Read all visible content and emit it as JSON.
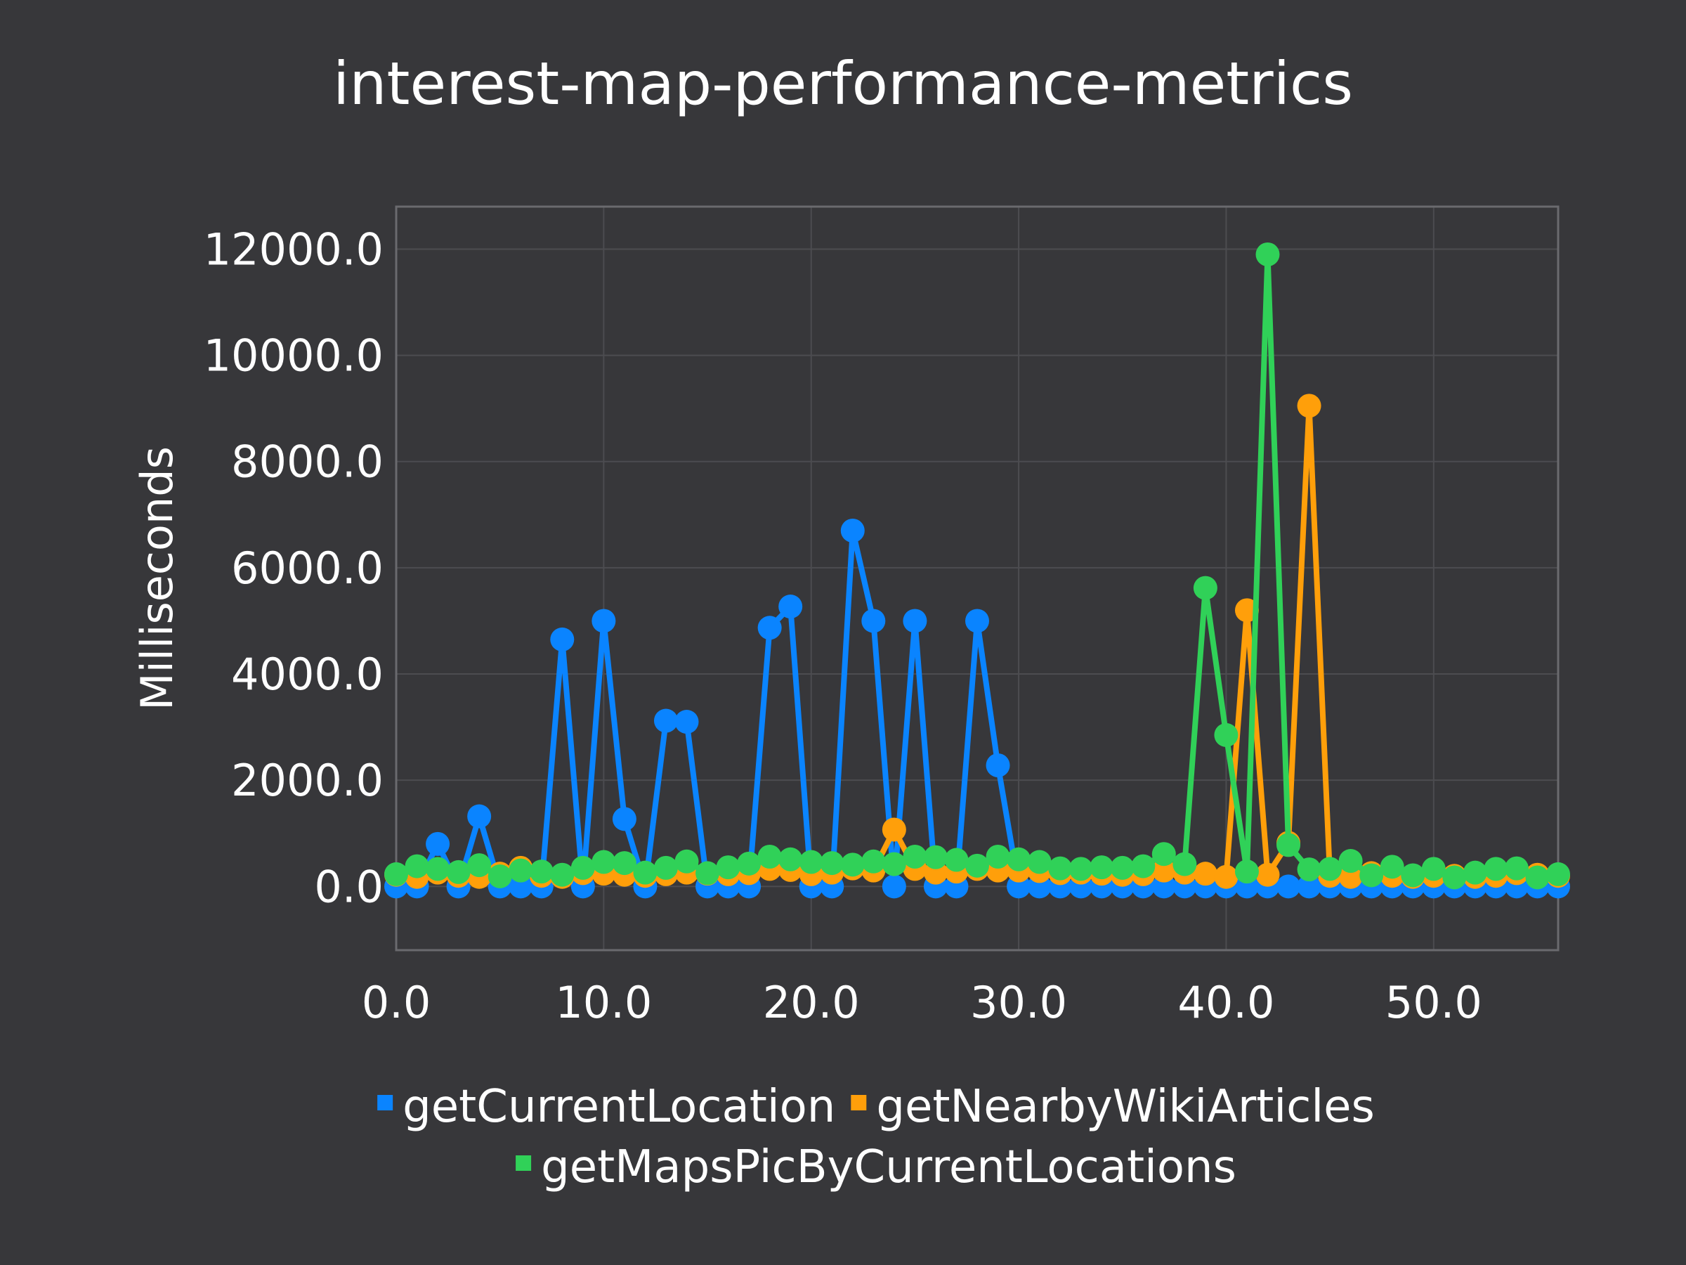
{
  "chart_data": {
    "type": "line",
    "title": "interest-map-performance-metrics",
    "xlabel": "",
    "ylabel": "Milliseconds",
    "xlim": [
      0,
      56
    ],
    "ylim": [
      -1200,
      12800
    ],
    "xticks": [
      0,
      10,
      20,
      30,
      40,
      50
    ],
    "yticks": [
      0,
      2000,
      4000,
      6000,
      8000,
      10000,
      12000
    ],
    "xtick_labels": [
      "0.0",
      "10.0",
      "20.0",
      "30.0",
      "40.0",
      "50.0"
    ],
    "ytick_labels": [
      "0.0",
      "2000.0",
      "4000.0",
      "6000.0",
      "8000.0",
      "10000.0",
      "12000.0"
    ],
    "grid": true,
    "legend_position": "bottom",
    "x": [
      0,
      1,
      2,
      3,
      4,
      5,
      6,
      7,
      8,
      9,
      10,
      11,
      12,
      13,
      14,
      15,
      16,
      17,
      18,
      19,
      20,
      21,
      22,
      23,
      24,
      25,
      26,
      27,
      28,
      29,
      30,
      31,
      32,
      33,
      34,
      35,
      36,
      37,
      38,
      39,
      40,
      41,
      42,
      43,
      44,
      45,
      46,
      47,
      48,
      49,
      50,
      51,
      52,
      53,
      54,
      55,
      56
    ],
    "series": [
      {
        "name": "getCurrentLocation",
        "color": "#0a84ff",
        "values": [
          0,
          0,
          800,
          0,
          1320,
          0,
          0,
          0,
          4650,
          0,
          5000,
          1270,
          0,
          3120,
          3100,
          0,
          0,
          0,
          4870,
          5270,
          0,
          0,
          6700,
          5000,
          0,
          5000,
          0,
          0,
          5000,
          2280,
          0,
          0,
          0,
          0,
          0,
          0,
          0,
          0,
          0,
          0,
          0,
          0,
          0,
          0,
          0,
          0,
          0,
          0,
          0,
          0,
          0,
          0,
          0,
          0,
          0,
          0,
          0
        ]
      },
      {
        "name": "getNearbyWikiArticles",
        "color": "#ff9f0a",
        "values": [
          220,
          180,
          260,
          200,
          180,
          240,
          350,
          200,
          180,
          250,
          240,
          220,
          200,
          230,
          260,
          240,
          230,
          250,
          330,
          310,
          230,
          260,
          340,
          300,
          1070,
          330,
          260,
          280,
          330,
          300,
          300,
          290,
          250,
          260,
          240,
          220,
          230,
          300,
          260,
          240,
          180,
          5200,
          220,
          820,
          9050,
          200,
          180,
          250,
          200,
          180,
          200,
          200,
          180,
          200,
          250,
          220,
          200
        ]
      },
      {
        "name": "getMapsPicByCurrentLocations",
        "color": "#30d158",
        "values": [
          230,
          380,
          330,
          270,
          400,
          190,
          300,
          280,
          220,
          350,
          460,
          440,
          260,
          350,
          470,
          250,
          360,
          430,
          560,
          510,
          460,
          440,
          410,
          470,
          420,
          560,
          550,
          500,
          390,
          560,
          510,
          460,
          340,
          330,
          360,
          350,
          380,
          610,
          420,
          5620,
          2850,
          280,
          11900,
          780,
          320,
          330,
          480,
          210,
          370,
          210,
          330,
          170,
          260,
          330,
          340,
          170,
          230
        ]
      }
    ]
  }
}
